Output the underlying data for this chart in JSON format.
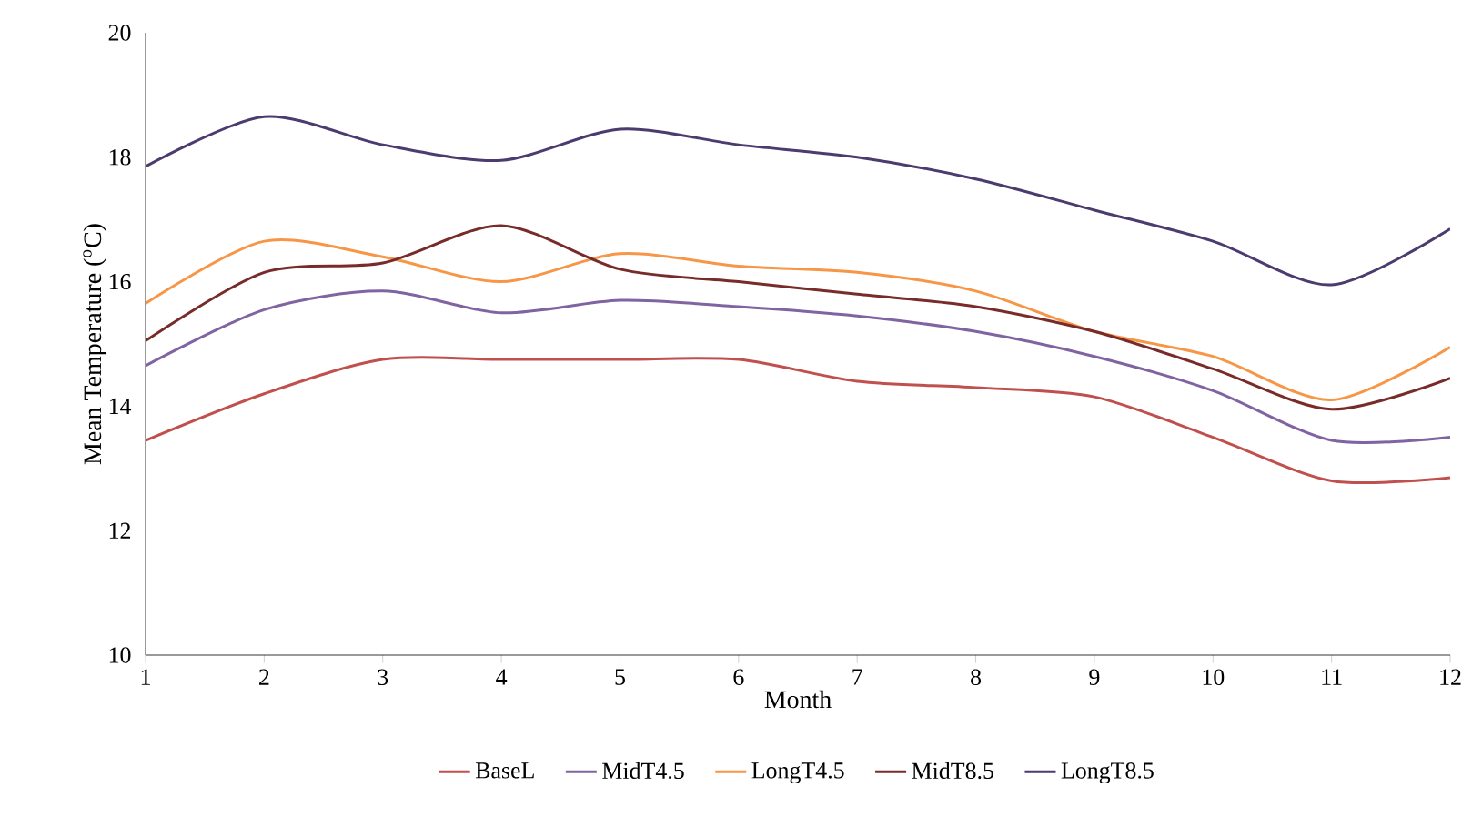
{
  "chart_data": {
    "type": "line",
    "xlabel": "Month",
    "ylabel": "Mean Temperature ($^{o}$C)",
    "x": [
      1,
      2,
      3,
      4,
      5,
      6,
      7,
      8,
      9,
      10,
      11,
      12
    ],
    "xlim": [
      1,
      12
    ],
    "ylim": [
      10,
      20
    ],
    "xticks": [
      1,
      2,
      3,
      4,
      5,
      6,
      7,
      8,
      9,
      10,
      11,
      12
    ],
    "yticks": [
      10,
      12,
      14,
      16,
      18,
      20
    ],
    "grid": false,
    "legend": "bottom",
    "marker": "none",
    "line_style": "solid",
    "series": [
      {
        "name": "BaseL",
        "color": "#c0504d",
        "values": [
          13.45,
          14.2,
          14.75,
          14.75,
          14.75,
          14.75,
          14.4,
          14.3,
          14.15,
          13.5,
          12.8,
          12.85
        ]
      },
      {
        "name": "MidT4.5",
        "color": "#8064a2",
        "values": [
          14.65,
          15.55,
          15.85,
          15.5,
          15.7,
          15.6,
          15.45,
          15.2,
          14.8,
          14.25,
          13.45,
          13.5
        ]
      },
      {
        "name": "LongT4.5",
        "color": "#f79646",
        "values": [
          15.65,
          16.65,
          16.4,
          16.0,
          16.45,
          16.25,
          16.15,
          15.85,
          15.2,
          14.8,
          14.1,
          14.95
        ]
      },
      {
        "name": "MidT8.5",
        "color": "#772c2a",
        "values": [
          15.05,
          16.15,
          16.3,
          16.9,
          16.2,
          16.0,
          15.8,
          15.6,
          15.2,
          14.6,
          13.95,
          14.45
        ]
      },
      {
        "name": "LongT8.5",
        "color": "#4b3b6e",
        "values": [
          17.85,
          18.65,
          18.2,
          17.95,
          18.45,
          18.2,
          18.0,
          17.65,
          17.15,
          16.65,
          15.95,
          16.85
        ]
      }
    ]
  }
}
